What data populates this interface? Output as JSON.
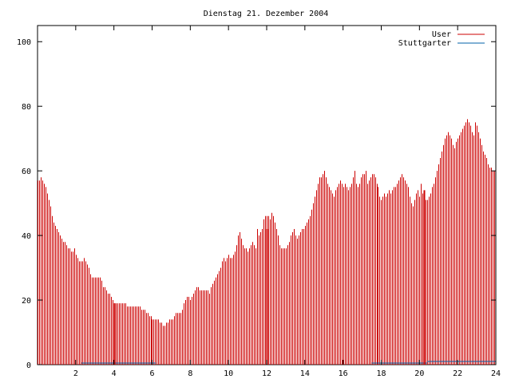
{
  "chart_data": {
    "type": "bar",
    "title": "Dienstag 21. Dezember 2004",
    "xlabel": "",
    "ylabel": "",
    "xlim": [
      0,
      24
    ],
    "ylim": [
      0,
      105
    ],
    "xticks": [
      2,
      4,
      6,
      8,
      10,
      12,
      14,
      16,
      18,
      20,
      22,
      24
    ],
    "yticks": [
      0,
      20,
      40,
      60,
      80,
      100
    ],
    "grid": false,
    "legend_position": "top-right",
    "series": [
      {
        "name": "User",
        "color": "#cc0000",
        "style": "impulses",
        "step_hours": 0.08333,
        "values": [
          57,
          57,
          58,
          57,
          56,
          55,
          53,
          51,
          49,
          46,
          44,
          43,
          42,
          41,
          40,
          39,
          38,
          38,
          37,
          36,
          36,
          35,
          35,
          36,
          34,
          33,
          32,
          32,
          32,
          33,
          32,
          31,
          30,
          28,
          27,
          27,
          27,
          27,
          27,
          27,
          26,
          24,
          24,
          23,
          22,
          22,
          21,
          20,
          19,
          19,
          19,
          19,
          19,
          19,
          19,
          19,
          18,
          18,
          18,
          18,
          18,
          18,
          18,
          18,
          18,
          17,
          17,
          17,
          16,
          16,
          15,
          15,
          14,
          14,
          14,
          14,
          14,
          13,
          13,
          12,
          12,
          13,
          13,
          14,
          14,
          14,
          15,
          16,
          16,
          16,
          16,
          17,
          19,
          20,
          21,
          21,
          20,
          21,
          22,
          23,
          24,
          24,
          23,
          23,
          23,
          23,
          23,
          23,
          22,
          24,
          25,
          26,
          27,
          28,
          29,
          30,
          32,
          33,
          32,
          33,
          34,
          33,
          33,
          34,
          35,
          37,
          40,
          41,
          39,
          37,
          36,
          36,
          35,
          36,
          37,
          38,
          37,
          36,
          42,
          40,
          41,
          42,
          45,
          46,
          46,
          46,
          45,
          47,
          46,
          44,
          42,
          40,
          37,
          36,
          36,
          36,
          36,
          37,
          38,
          40,
          41,
          42,
          40,
          39,
          40,
          41,
          42,
          42,
          43,
          44,
          45,
          46,
          48,
          50,
          52,
          54,
          56,
          58,
          58,
          59,
          60,
          58,
          56,
          55,
          54,
          53,
          52,
          54,
          55,
          56,
          57,
          56,
          55,
          56,
          55,
          54,
          55,
          56,
          58,
          60,
          56,
          55,
          56,
          58,
          59,
          59,
          60,
          56,
          57,
          58,
          59,
          59,
          58,
          56,
          55,
          52,
          51,
          52,
          53,
          52,
          53,
          54,
          53,
          54,
          55,
          55,
          56,
          57,
          58,
          59,
          58,
          57,
          56,
          55,
          52,
          50,
          49,
          51,
          53,
          54,
          52,
          56,
          53,
          51,
          51,
          51,
          52,
          53,
          55,
          56,
          58,
          60,
          62,
          64,
          66,
          68,
          70,
          71,
          72,
          71,
          70,
          68,
          67,
          69,
          70,
          71,
          72,
          73,
          74,
          75,
          76,
          75,
          74,
          72,
          71,
          75,
          74,
          72,
          70,
          68,
          66,
          65,
          64,
          62,
          61,
          61,
          60,
          60
        ]
      },
      {
        "name": "Stuttgarter",
        "color": "#0060a8",
        "style": "line",
        "segments": [
          {
            "x_start": 2.3,
            "x_end": 6.2,
            "y": 0.5
          },
          {
            "x_start": 17.5,
            "x_end": 20.4,
            "y": 0.5
          },
          {
            "x_start": 20.4,
            "x_end": 24.0,
            "y": 1.0
          }
        ]
      }
    ],
    "spikes": [
      {
        "x": 4.0,
        "y": 19
      },
      {
        "x": 12.0,
        "y": 42
      },
      {
        "x": 20.25,
        "y": 54
      }
    ]
  }
}
